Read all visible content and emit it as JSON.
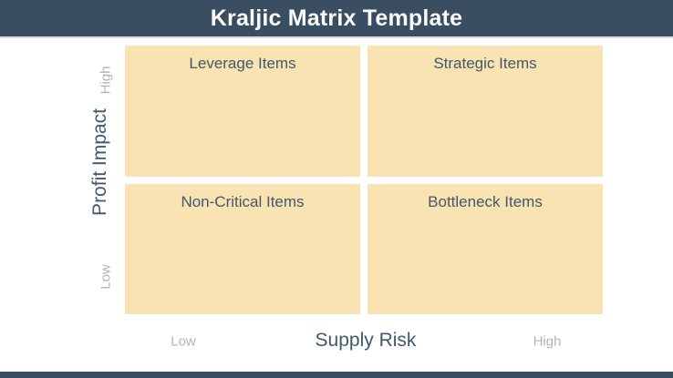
{
  "title": "Kraljic Matrix Template",
  "colors": {
    "bar_bg": "#3a4e61",
    "bar_divider": "#d9dce2",
    "quadrant_bg": "#f9e3b2",
    "quadrant_text": "#41586d",
    "axis_label_text": "#41586d",
    "tick_text": "#b1b3b6",
    "title_text": "#fafbfc",
    "background": "#ffffff"
  },
  "matrix": {
    "quadrants": [
      {
        "id": "top-left",
        "label": "Leverage Items"
      },
      {
        "id": "top-right",
        "label": "Strategic Items"
      },
      {
        "id": "bottom-left",
        "label": "Non-Critical Items"
      },
      {
        "id": "bottom-right",
        "label": "Bottleneck Items"
      }
    ]
  },
  "y_axis": {
    "label": "Profit Impact",
    "top_tick": "High",
    "bottom_tick": "Low"
  },
  "x_axis": {
    "label": "Supply Risk",
    "left_tick": "Low",
    "right_tick": "High"
  }
}
